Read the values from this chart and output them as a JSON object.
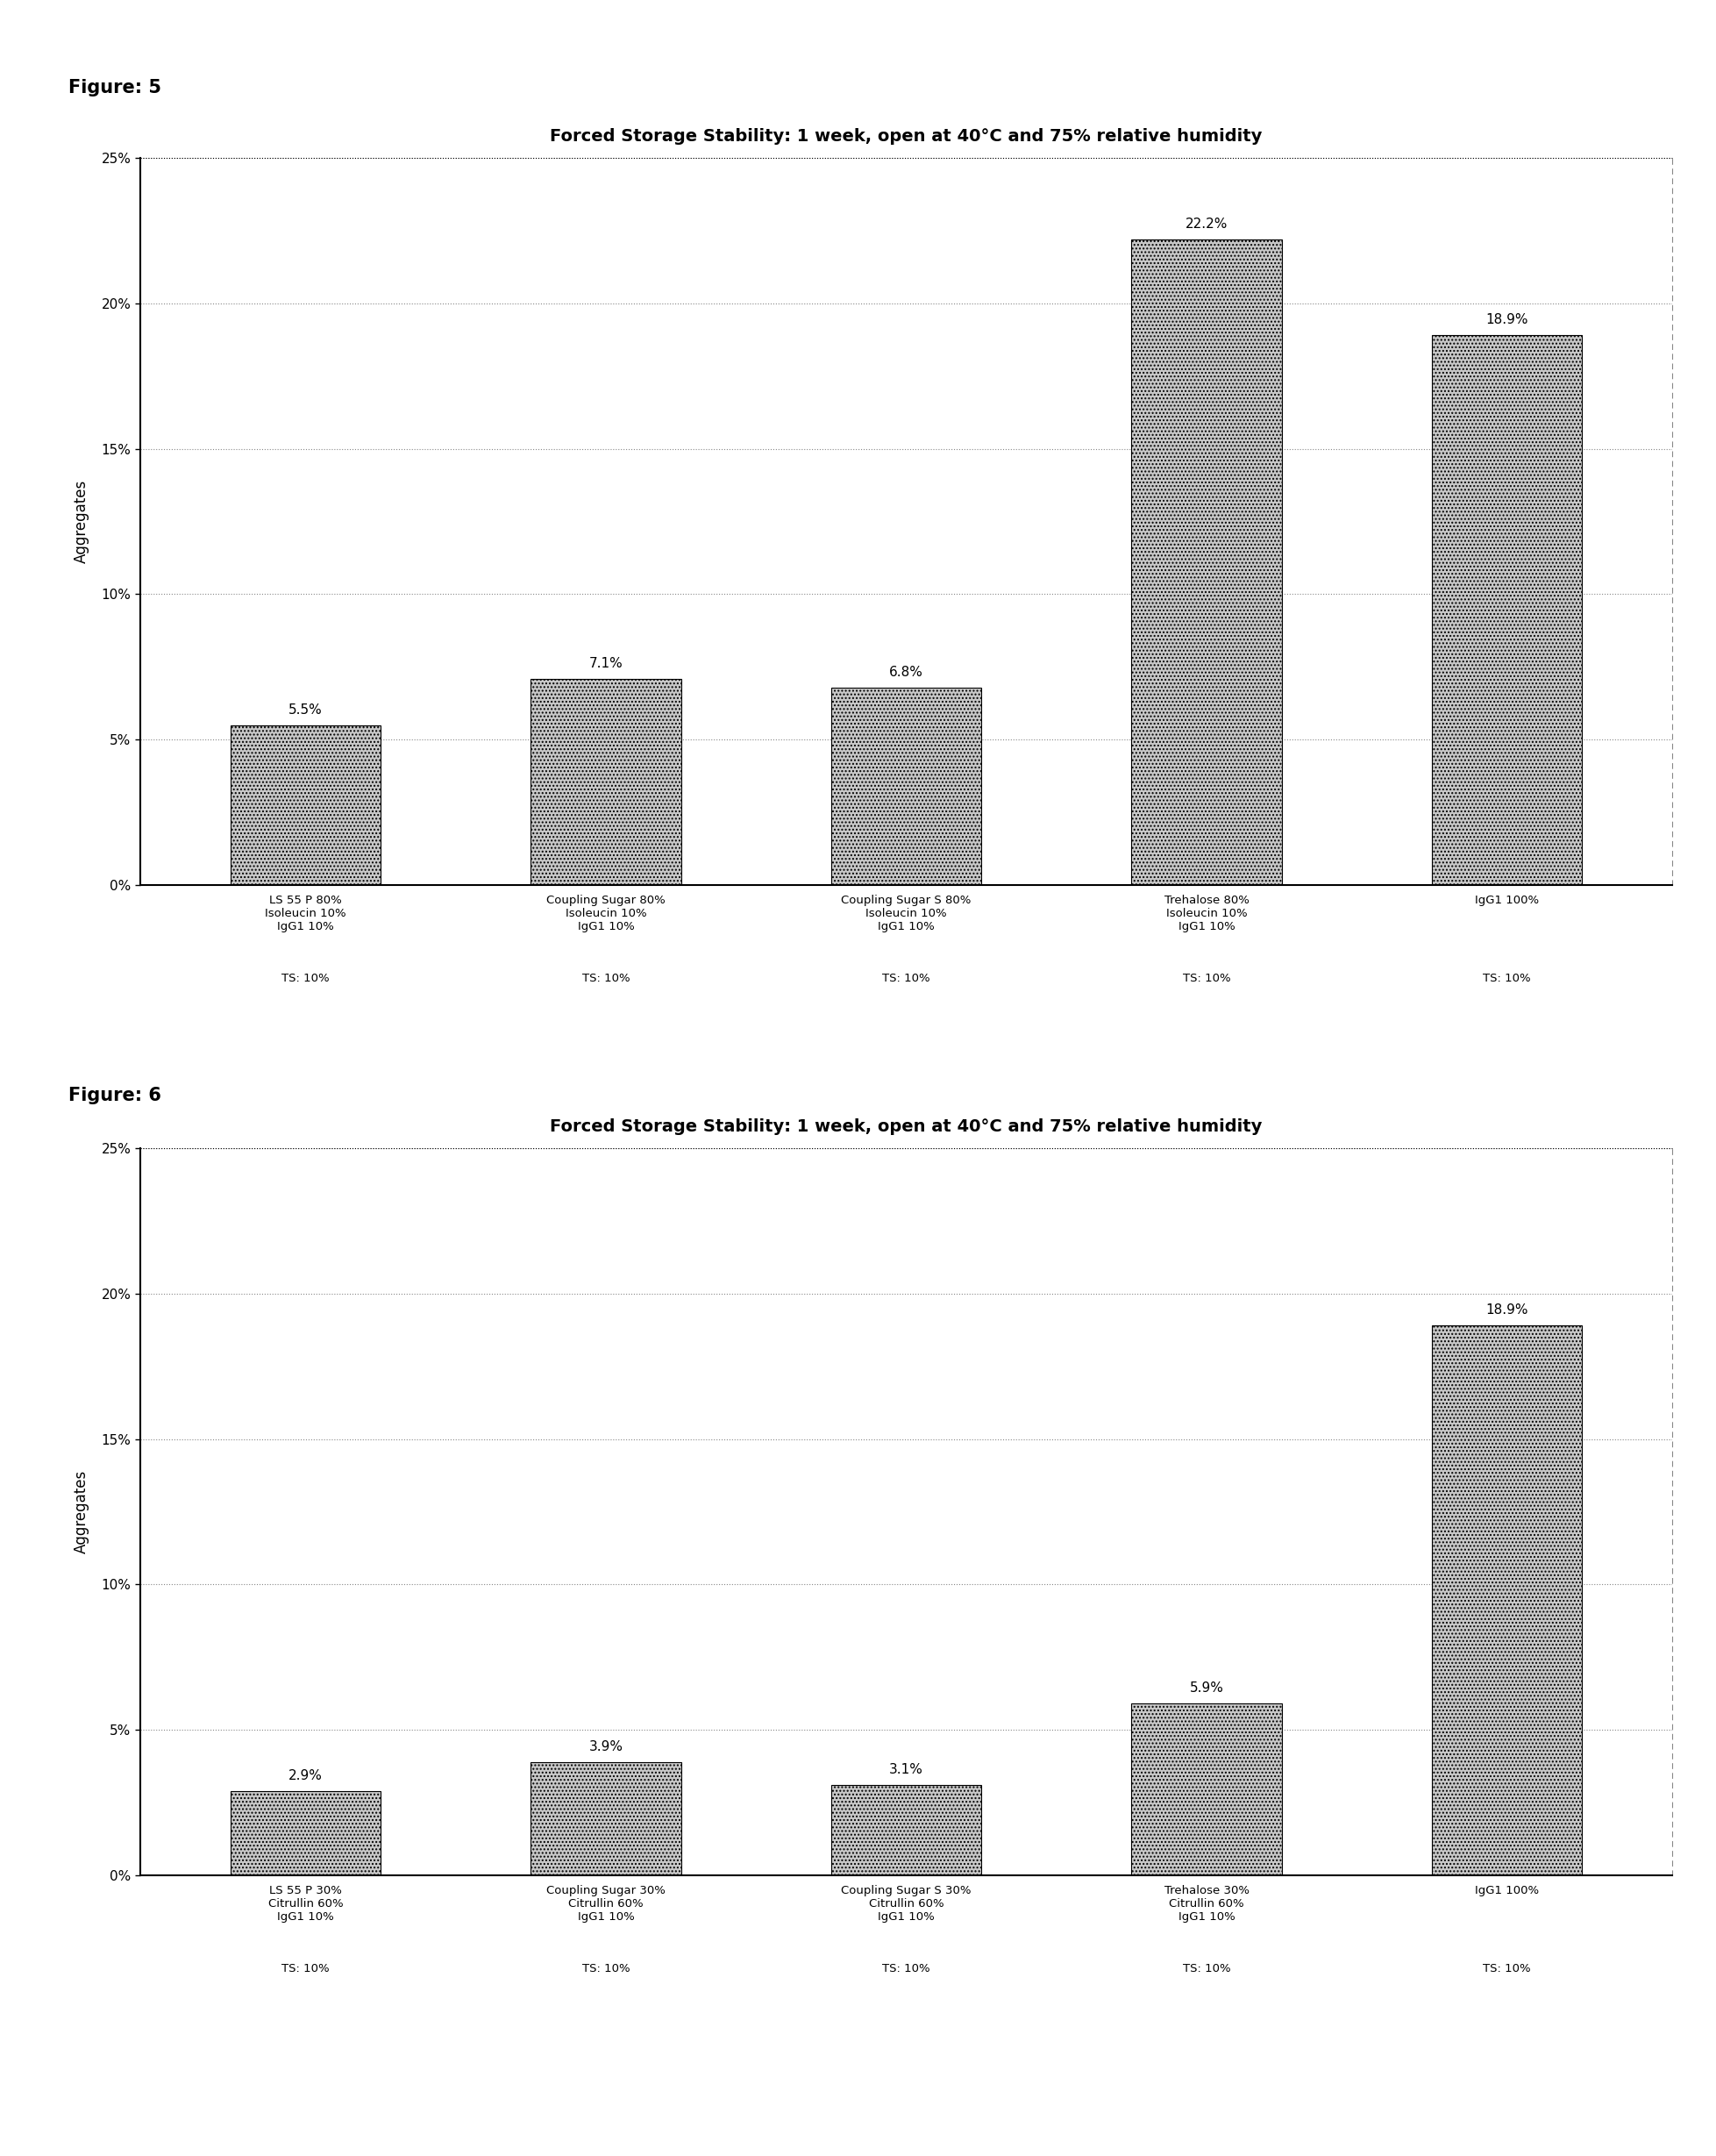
{
  "fig5": {
    "title": "Forced Storage Stability: 1 week, open at 40°C and 75% relative humidity",
    "categories": [
      "LS 55 P 80%\nIsoleucin 10%\nIgG1 10%",
      "Coupling Sugar 80%\nIsoleucin 10%\nIgG1 10%",
      "Coupling Sugar S 80%\nIsoleucin 10%\nIgG1 10%",
      "Trehalose 80%\nIsoleucin 10%\nIgG1 10%",
      "IgG1 100%"
    ],
    "ts_labels": [
      "TS: 10%",
      "TS: 10%",
      "TS: 10%",
      "TS: 10%",
      "TS: 10%"
    ],
    "values": [
      5.5,
      7.1,
      6.8,
      22.2,
      18.9
    ],
    "ylabel": "Aggregates",
    "ylim": [
      0,
      25
    ],
    "yticks": [
      0,
      5,
      10,
      15,
      20,
      25
    ],
    "yticklabels": [
      "0%",
      "5%",
      "10%",
      "15%",
      "20%",
      "25%"
    ],
    "figure_label": "Figure: 5"
  },
  "fig6": {
    "title": "Forced Storage Stability: 1 week, open at 40°C and 75% relative humidity",
    "categories": [
      "LS 55 P 30%\nCitrullin 60%\nIgG1 10%",
      "Coupling Sugar 30%\nCitrullin 60%\nIgG1 10%",
      "Coupling Sugar S 30%\nCitrullin 60%\nIgG1 10%",
      "Trehalose 30%\nCitrullin 60%\nIgG1 10%",
      "IgG1 100%"
    ],
    "ts_labels": [
      "TS: 10%",
      "TS: 10%",
      "TS: 10%",
      "TS: 10%",
      "TS: 10%"
    ],
    "values": [
      2.9,
      3.9,
      3.1,
      5.9,
      18.9
    ],
    "ylabel": "Aggregates",
    "ylim": [
      0,
      25
    ],
    "yticks": [
      0,
      5,
      10,
      15,
      20,
      25
    ],
    "yticklabels": [
      "0%",
      "5%",
      "10%",
      "15%",
      "20%",
      "25%"
    ],
    "figure_label": "Figure: 6"
  },
  "bar_color": "#c8c8c8",
  "bar_hatch": "....",
  "background_color": "#ffffff",
  "title_fontsize": 14,
  "label_fontsize": 9.5,
  "tick_fontsize": 11,
  "bar_label_fontsize": 11,
  "figure_label_fontsize": 15
}
